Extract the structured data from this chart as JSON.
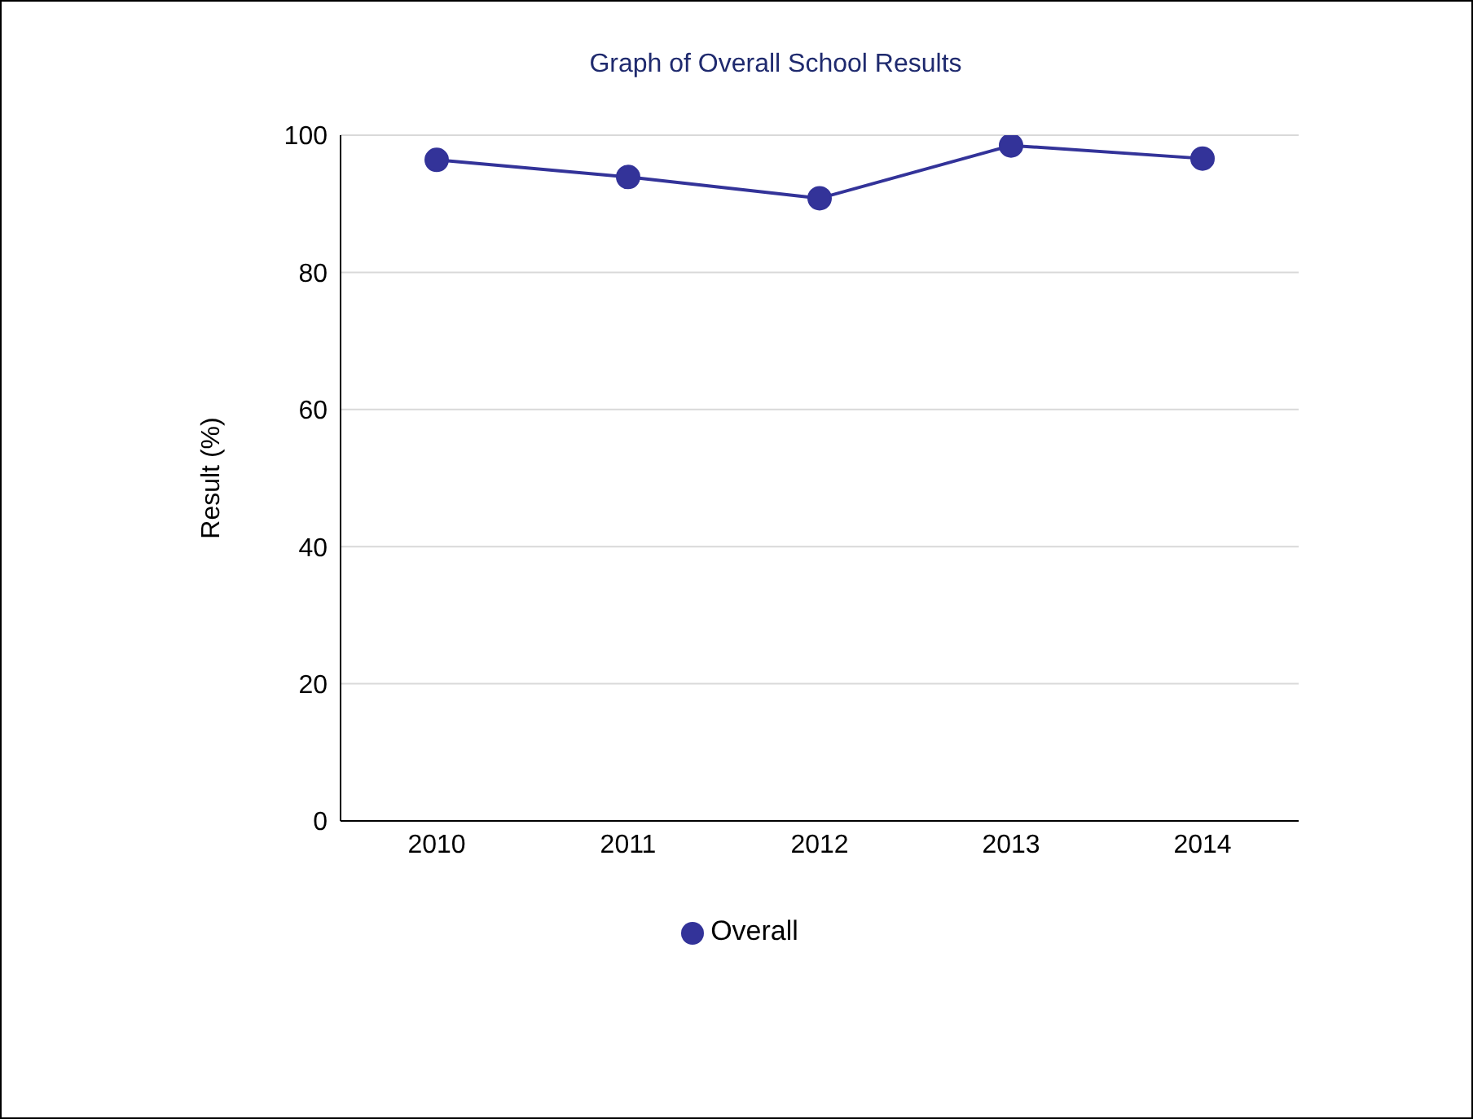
{
  "chart_data": {
    "type": "line",
    "title": "Graph of Overall School Results",
    "ylabel": "Result (%)",
    "categories": [
      "2010",
      "2011",
      "2012",
      "2013",
      "2014"
    ],
    "series": [
      {
        "name": "Overall",
        "color": "#333399",
        "values": [
          96.4,
          93.9,
          90.8,
          98.5,
          96.6
        ]
      }
    ],
    "ylim": [
      0,
      100
    ],
    "yticks": [
      0,
      20,
      40,
      60,
      80,
      100
    ],
    "grid": "y",
    "legend": "bottom",
    "marker": "circle",
    "line_style": "solid"
  }
}
